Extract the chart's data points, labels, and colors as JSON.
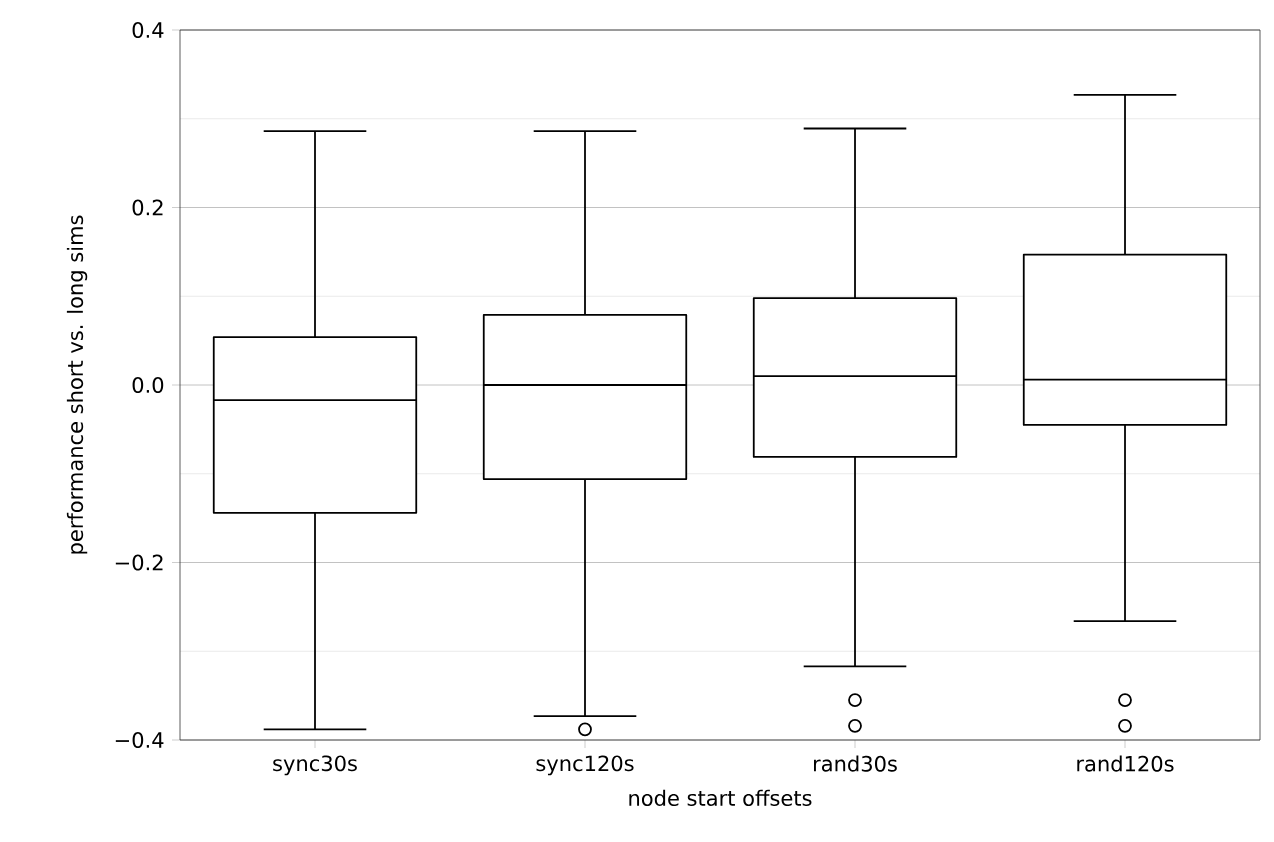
{
  "chart_data": {
    "type": "box",
    "xlabel": "node start offsets",
    "ylabel": "performance short vs. long sims",
    "categories": [
      "sync30s",
      "sync120s",
      "rand30s",
      "rand120s"
    ],
    "boxes": [
      {
        "low": -0.388,
        "q1": -0.144,
        "median": -0.017,
        "q3": 0.054,
        "high": 0.286
      },
      {
        "low": -0.373,
        "q1": -0.106,
        "median": 0.0,
        "q3": 0.079,
        "high": 0.286,
        "outliers": [
          -0.388
        ]
      },
      {
        "low": -0.317,
        "q1": -0.081,
        "median": 0.01,
        "q3": 0.098,
        "high": 0.289,
        "outliers": [
          -0.355,
          -0.384
        ]
      },
      {
        "low": -0.266,
        "q1": -0.045,
        "median": 0.006,
        "q3": 0.147,
        "high": 0.327,
        "outliers": [
          -0.355,
          -0.384
        ]
      }
    ],
    "color": "#000000",
    "ylim": [
      -0.4,
      0.4
    ],
    "yticks": [
      {
        "value": -0.4,
        "label": "−0.4"
      },
      {
        "value": -0.2,
        "label": "−0.2"
      },
      {
        "value": 0.0,
        "label": "0.0"
      },
      0.2,
      0.4
    ],
    "grid": "y"
  }
}
